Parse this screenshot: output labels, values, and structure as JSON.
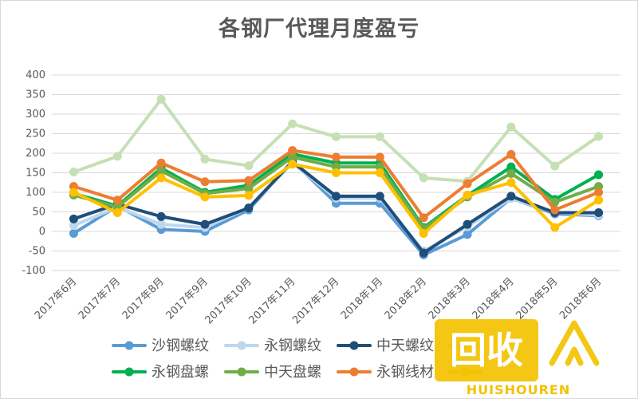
{
  "chart_data": {
    "type": "line",
    "title": "各钢厂代理月度盈亏",
    "categories": [
      "2017年6月",
      "2017年7月",
      "2017年8月",
      "2017年9月",
      "2017年10月",
      "2017年11月",
      "2017年12月",
      "2018年1月",
      "2018年2月",
      "2018年3月",
      "2018年4月",
      "2018年5月",
      "2018年6月"
    ],
    "ylim": [
      -100,
      400
    ],
    "yticks": [
      -100,
      -50,
      0,
      50,
      100,
      150,
      200,
      250,
      300,
      350,
      400
    ],
    "grid": true,
    "legend_position": "bottom",
    "series": [
      {
        "name": "沙钢螺纹",
        "color": "#5b9bd5",
        "values": [
          -5,
          65,
          5,
          0,
          55,
          180,
          72,
          72,
          -60,
          -8,
          85,
          45,
          40
        ]
      },
      {
        "name": "永钢螺纹",
        "color": "#bdd7ee",
        "values": [
          15,
          62,
          18,
          10,
          60,
          175,
          85,
          85,
          -50,
          12,
          85,
          48,
          42
        ]
      },
      {
        "name": "中天螺纹",
        "color": "#1f4e79",
        "values": [
          32,
          70,
          38,
          18,
          60,
          178,
          90,
          90,
          -55,
          18,
          90,
          48,
          48
        ]
      },
      {
        "name": "",
        "color": "#c5e0b4",
        "values": [
          152,
          192,
          338,
          185,
          168,
          275,
          242,
          242,
          137,
          128,
          267,
          167,
          243
        ]
      },
      {
        "name": "永钢盘螺",
        "color": "#00b050",
        "values": [
          97,
          65,
          162,
          100,
          118,
          198,
          175,
          175,
          10,
          92,
          165,
          82,
          145
        ]
      },
      {
        "name": "中天盘螺",
        "color": "#70ad47",
        "values": [
          93,
          62,
          155,
          97,
          110,
          190,
          165,
          165,
          7,
          88,
          148,
          75,
          115
        ]
      },
      {
        "name": "永钢线材",
        "color": "#ed7d31",
        "values": [
          115,
          80,
          175,
          127,
          130,
          207,
          190,
          190,
          35,
          122,
          197,
          55,
          100
        ]
      },
      {
        "name": "",
        "color": "#ffc000",
        "values": [
          100,
          48,
          137,
          88,
          92,
          172,
          150,
          150,
          -5,
          93,
          125,
          10,
          80
        ]
      }
    ]
  },
  "watermark": {
    "text": "HUISHOUREN",
    "logo_chars": "回收"
  }
}
